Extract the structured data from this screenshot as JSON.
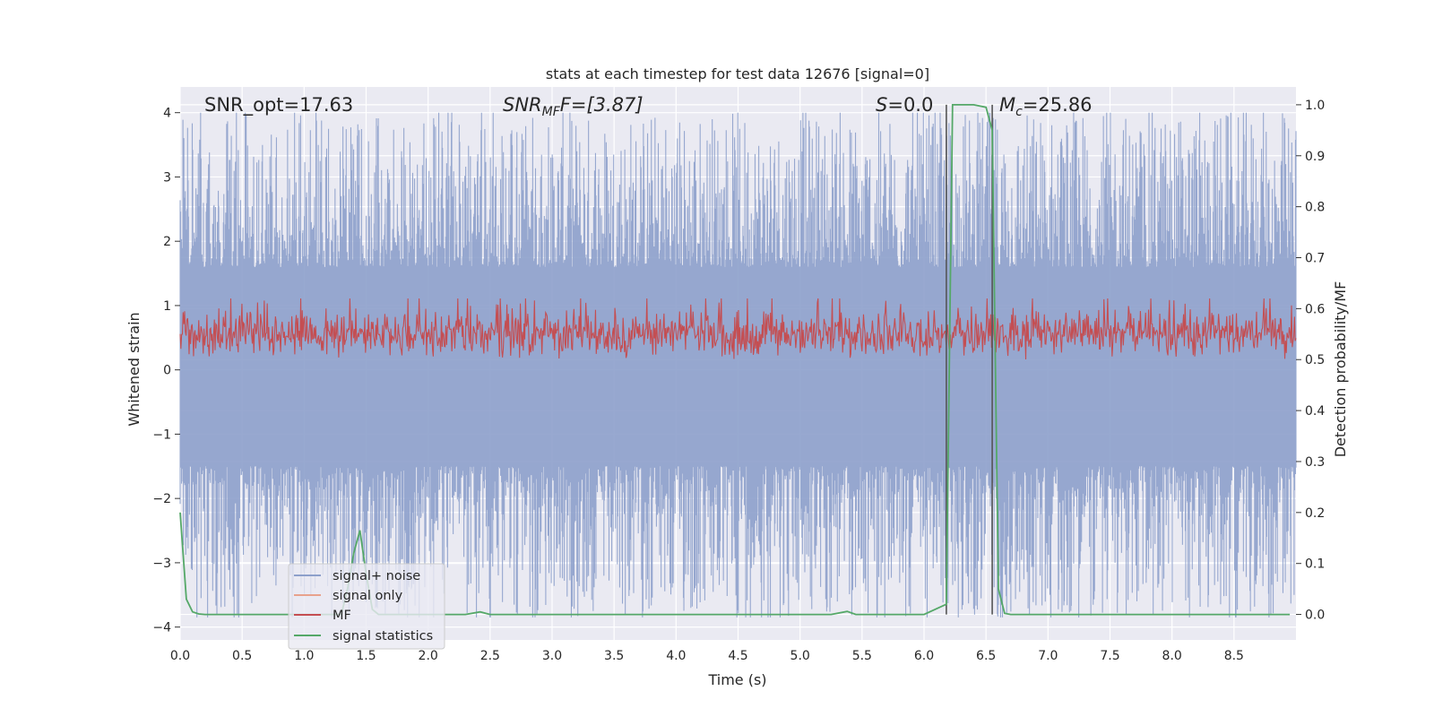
{
  "chart_data": {
    "type": "line",
    "title": "stats at each timestep for test data 12676 [signal=0]",
    "xlabel": "Time (s)",
    "ylabel_left": "Whitened strain",
    "ylabel_right": "Detection probability/MF",
    "xlim": [
      0.0,
      9.0
    ],
    "ylim_left": [
      -4.2,
      4.4
    ],
    "ylim_right": [
      -0.05,
      1.035
    ],
    "x_ticks": [
      0.0,
      0.5,
      1.0,
      1.5,
      2.0,
      2.5,
      3.0,
      3.5,
      4.0,
      4.5,
      5.0,
      5.5,
      6.0,
      6.5,
      7.0,
      7.5,
      8.0,
      8.5
    ],
    "x_tick_labels": [
      "0.0",
      "0.5",
      "1.0",
      "1.5",
      "2.0",
      "2.5",
      "3.0",
      "3.5",
      "4.0",
      "4.5",
      "5.0",
      "5.5",
      "6.0",
      "6.5",
      "7.0",
      "7.5",
      "8.0",
      "8.5"
    ],
    "y_left_ticks": [
      4,
      3,
      2,
      1,
      0,
      -1,
      -2,
      -3,
      -4
    ],
    "y_left_tick_labels": [
      "4",
      "3",
      "2",
      "1",
      "0",
      "−1",
      "−2",
      "−3",
      "−4"
    ],
    "y_right_ticks": [
      1.0,
      0.9,
      0.8,
      0.7,
      0.6,
      0.5,
      0.4,
      0.3,
      0.2,
      0.1,
      0.0
    ],
    "y_right_tick_labels": [
      "1.0",
      "0.9",
      "0.8",
      "0.7",
      "0.6",
      "0.5",
      "0.4",
      "0.3",
      "0.2",
      "0.1",
      "0.0"
    ],
    "annotations": {
      "snr_opt": "SNR_opt=17.63",
      "snr_mf_sym": "SNR",
      "snr_mf_sub": "MF",
      "snr_mf_tail": "F=[3.87]",
      "s_sym": "S",
      "s_tail": "=0.0",
      "mc_sym": "M",
      "mc_sub": "c",
      "mc_tail": "=25.86"
    },
    "vertical_markers": [
      6.18,
      6.55
    ],
    "series": [
      {
        "name": "signal+ noise",
        "color": "#8da0cb",
        "axis": "left",
        "kind": "noise",
        "band": [
          -1.5,
          1.6
        ],
        "peak_max": 4.0,
        "trough_min": -3.85
      },
      {
        "name": "signal only",
        "color": "#e8a28c",
        "axis": "left",
        "kind": "flat",
        "values": []
      },
      {
        "name": "MF",
        "color": "#c44e52",
        "axis": "right",
        "kind": "mf",
        "range": [
          0.5,
          0.62
        ]
      },
      {
        "name": "signal statistics",
        "color": "#55a868",
        "axis": "right",
        "x": [
          0.0,
          0.05,
          0.1,
          0.15,
          0.2,
          0.5,
          1.0,
          1.3,
          1.35,
          1.4,
          1.45,
          1.5,
          1.55,
          1.6,
          2.0,
          2.3,
          2.42,
          2.5,
          3.0,
          4.0,
          5.0,
          5.25,
          5.38,
          5.45,
          5.6,
          6.0,
          6.18,
          6.23,
          6.3,
          6.4,
          6.5,
          6.55,
          6.6,
          6.65,
          6.7,
          7.0,
          8.0,
          8.95
        ],
        "values": [
          0.2,
          0.03,
          0.005,
          0.001,
          0.0,
          0.0,
          0.0,
          0.0,
          0.05,
          0.12,
          0.165,
          0.08,
          0.01,
          0.0,
          0.0,
          0.0,
          0.005,
          0.0,
          0.0,
          0.0,
          0.0,
          0.0,
          0.006,
          0.0,
          0.0,
          0.0,
          0.02,
          1.0,
          1.0,
          1.0,
          0.995,
          0.95,
          0.05,
          0.002,
          0.0,
          0.0,
          0.0,
          0.0
        ]
      }
    ],
    "legend": {
      "placement": "lower-left",
      "entries": [
        "signal+ noise",
        "signal only",
        "MF",
        "signal statistics"
      ]
    }
  }
}
